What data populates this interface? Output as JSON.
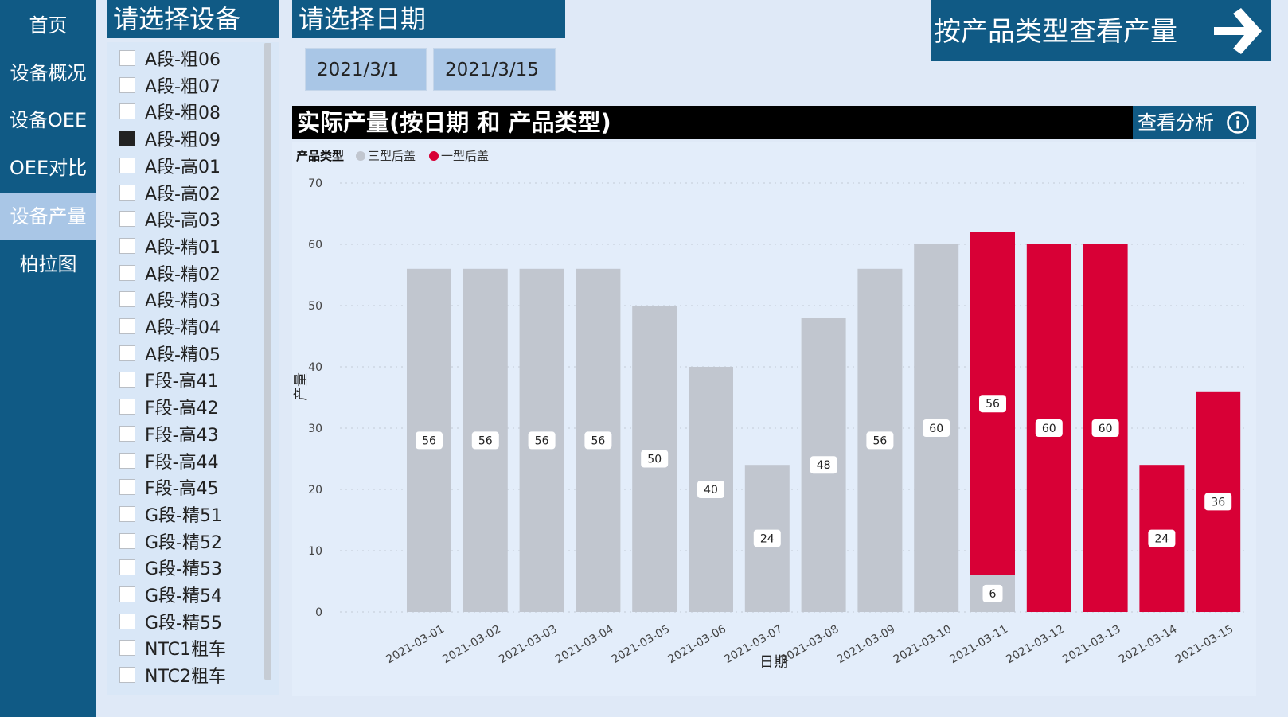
{
  "nav": {
    "items": [
      {
        "label": "首页",
        "active": false
      },
      {
        "label": "设备概况",
        "active": false
      },
      {
        "label": "设备OEE",
        "active": false
      },
      {
        "label": "OEE对比",
        "active": false
      },
      {
        "label": "设备产量",
        "active": true
      },
      {
        "label": "柏拉图",
        "active": false
      }
    ]
  },
  "device_panel": {
    "title": "请选择设备",
    "items": [
      {
        "label": "A段-粗06",
        "checked": false
      },
      {
        "label": "A段-粗07",
        "checked": false
      },
      {
        "label": "A段-粗08",
        "checked": false
      },
      {
        "label": "A段-粗09",
        "checked": true
      },
      {
        "label": "A段-高01",
        "checked": false
      },
      {
        "label": "A段-高02",
        "checked": false
      },
      {
        "label": "A段-高03",
        "checked": false
      },
      {
        "label": "A段-精01",
        "checked": false
      },
      {
        "label": "A段-精02",
        "checked": false
      },
      {
        "label": "A段-精03",
        "checked": false
      },
      {
        "label": "A段-精04",
        "checked": false
      },
      {
        "label": "A段-精05",
        "checked": false
      },
      {
        "label": "F段-高41",
        "checked": false
      },
      {
        "label": "F段-高42",
        "checked": false
      },
      {
        "label": "F段-高43",
        "checked": false
      },
      {
        "label": "F段-高44",
        "checked": false
      },
      {
        "label": "F段-高45",
        "checked": false
      },
      {
        "label": "G段-精51",
        "checked": false
      },
      {
        "label": "G段-精52",
        "checked": false
      },
      {
        "label": "G段-精53",
        "checked": false
      },
      {
        "label": "G段-精54",
        "checked": false
      },
      {
        "label": "G段-精55",
        "checked": false
      },
      {
        "label": "NTC1粗车",
        "checked": false
      },
      {
        "label": "NTC2粗车",
        "checked": false
      }
    ]
  },
  "date_panel": {
    "title": "请选择日期",
    "start": "2021/3/1",
    "end": "2021/3/15"
  },
  "product_button": {
    "label": "按产品类型查看产量",
    "icon": "arrow-right-icon"
  },
  "chart_header": {
    "title": "实际产量(按日期 和 产品类型)",
    "analyze_label": "查看分析",
    "analyze_icon": "info-icon"
  },
  "chart_data": {
    "type": "bar",
    "stacked": true,
    "legend_title": "产品类型",
    "legend_position": "top-left",
    "xlabel": "日期",
    "ylabel": "产量",
    "ylim": [
      0,
      70
    ],
    "yticks": [
      0,
      10,
      20,
      30,
      40,
      50,
      60,
      70
    ],
    "grid": true,
    "categories": [
      "2021-03-01",
      "2021-03-02",
      "2021-03-03",
      "2021-03-04",
      "2021-03-05",
      "2021-03-06",
      "2021-03-07",
      "2021-03-08",
      "2021-03-09",
      "2021-03-10",
      "2021-03-11",
      "2021-03-12",
      "2021-03-13",
      "2021-03-14",
      "2021-03-15"
    ],
    "series": [
      {
        "name": "三型后盖",
        "color": "#c1c6cf",
        "values": [
          56,
          56,
          56,
          56,
          50,
          40,
          24,
          48,
          56,
          60,
          6,
          0,
          0,
          0,
          0
        ]
      },
      {
        "name": "一型后盖",
        "color": "#d80036",
        "values": [
          0,
          0,
          0,
          0,
          0,
          0,
          0,
          0,
          0,
          0,
          56,
          60,
          60,
          24,
          36
        ]
      }
    ]
  }
}
